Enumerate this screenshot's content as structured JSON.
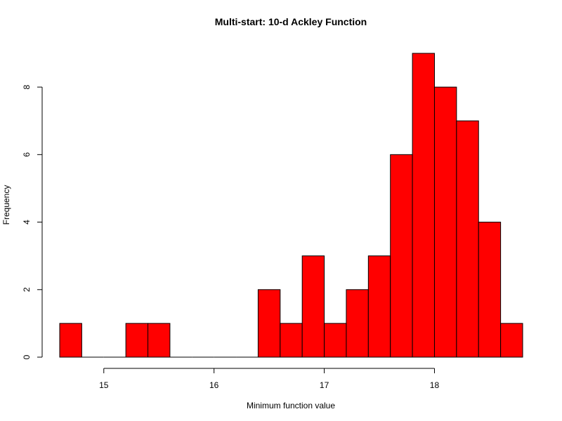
{
  "chart_data": {
    "type": "bar",
    "title": "Multi-start: 10-d Ackley Function",
    "xlabel": "Minimum function value",
    "ylabel": "Frequency",
    "bin_edges": [
      14.6,
      14.8,
      15.0,
      15.2,
      15.4,
      15.6,
      15.8,
      16.0,
      16.2,
      16.4,
      16.6,
      16.8,
      17.0,
      17.2,
      17.4,
      17.6,
      17.8,
      18.0,
      18.2,
      18.4,
      18.6,
      18.8
    ],
    "values": [
      1,
      0,
      0,
      1,
      1,
      0,
      0,
      0,
      0,
      2,
      1,
      3,
      1,
      2,
      3,
      6,
      9,
      8,
      7,
      4,
      1
    ],
    "xlim": [
      14.6,
      18.8
    ],
    "ylim": [
      0,
      9
    ],
    "x_ticks": [
      "15",
      "16",
      "17",
      "18"
    ],
    "y_ticks": [
      "0",
      "2",
      "4",
      "6",
      "8"
    ],
    "grid": false,
    "bar_color": "#ff0000",
    "edge_color": "#000000"
  }
}
